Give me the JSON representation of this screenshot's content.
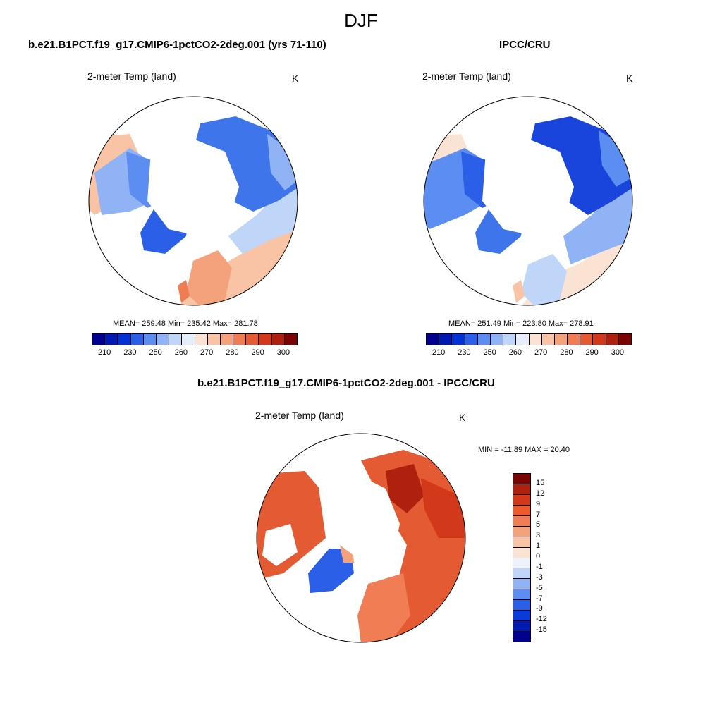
{
  "figure": {
    "title": "DJF"
  },
  "panels": [
    {
      "title": "b.e21.B1PCT.f19_g17.CMIP6-1pctCO2-2deg.001 (yrs 71-110)",
      "variable": "2-meter Temp (land)",
      "units": "K",
      "stats": "MEAN= 259.48  Min= 235.42  Max= 281.78"
    },
    {
      "title": "IPCC/CRU",
      "variable": "2-meter Temp (land)",
      "units": "K",
      "stats": "MEAN= 251.49  Min= 223.80  Max= 278.91"
    },
    {
      "title": "b.e21.B1PCT.f19_g17.CMIP6-1pctCO2-2deg.001 - IPCC/CRU",
      "variable": "2-meter Temp (land)",
      "units": "K",
      "stats": "MIN = -11.89 MAX =  20.40"
    }
  ],
  "temp_colorbar": {
    "colors": [
      "#00008f",
      "#0019b0",
      "#0033d6",
      "#2c5fe8",
      "#5b8ef0",
      "#8fb3f5",
      "#bfd6f8",
      "#e6eefb",
      "#fbe3d4",
      "#f9c4a5",
      "#f4a27b",
      "#ee7d54",
      "#e35a33",
      "#d2391b",
      "#b0200e",
      "#7a0403"
    ],
    "labels": [
      "210",
      "230",
      "250",
      "260",
      "270",
      "280",
      "290",
      "300"
    ]
  },
  "diff_colorbar": {
    "colors": [
      "#7a0403",
      "#b0200e",
      "#d2391b",
      "#ee5a2e",
      "#f07d54",
      "#f4a27b",
      "#f9c4a5",
      "#fbe3d4",
      "#eef2fb",
      "#bfd6f8",
      "#8fb3f5",
      "#5b8ef0",
      "#2c5fe8",
      "#0a3ad8",
      "#0019b0",
      "#00008f"
    ],
    "labels": [
      "15",
      "12",
      "9",
      "7",
      "5",
      "3",
      "1",
      "0",
      "-1",
      "-3",
      "-5",
      "-7",
      "-9",
      "-12",
      "-15"
    ]
  }
}
